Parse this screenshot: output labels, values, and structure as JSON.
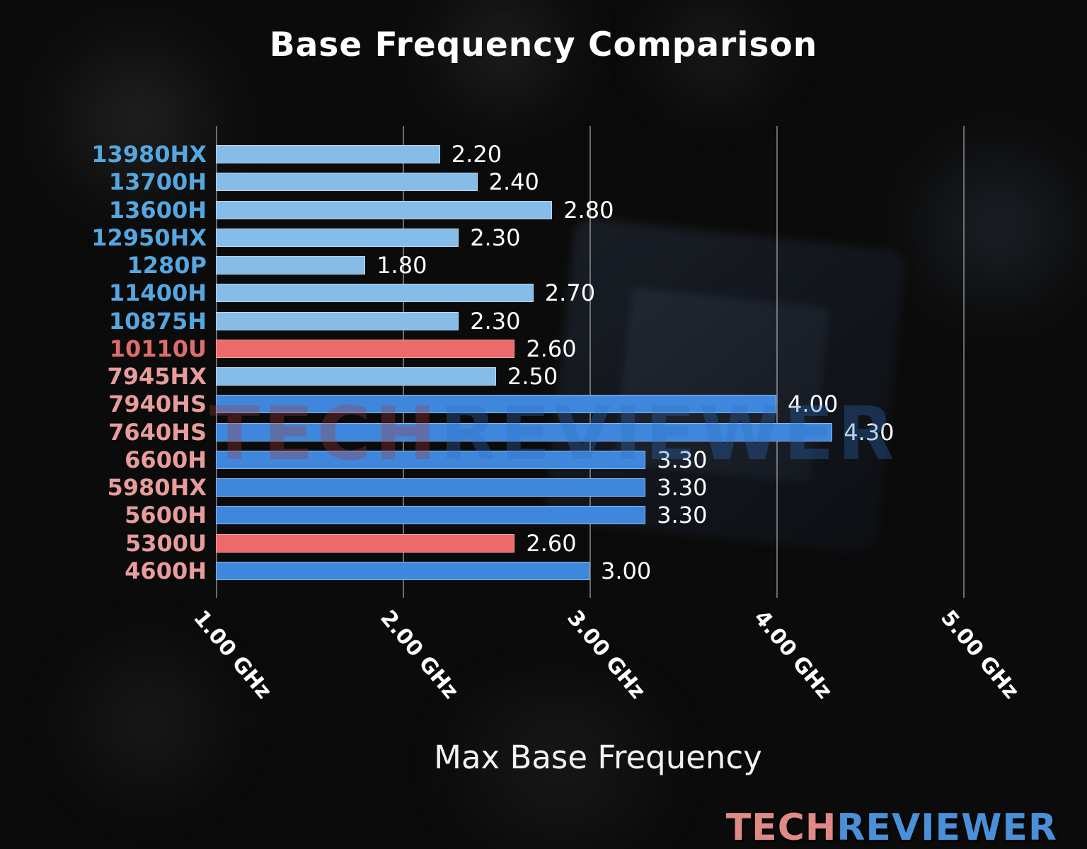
{
  "colors": {
    "background": "#0b0b0b",
    "title_text": "#ffffff",
    "value_text": "#ffffff",
    "tick_text": "#ffffff",
    "gridline": "#bebebe",
    "intel_bar": "#85bde8",
    "amd_bar": "#3e87dd",
    "highlight_bar": "#ec6a6a",
    "intel_label": "#55a7e0",
    "amd_label": "#e89c9c",
    "highlight_label": "#e06d6d",
    "watermark_tech": "#a83a3a",
    "watermark_reviewer": "#2f6fc0",
    "footer_tech": "#e08a85",
    "footer_reviewer": "#4a90d8"
  },
  "watermark": {
    "tech": "TECH",
    "reviewer": "REVIEWER"
  },
  "footer": {
    "tech": "TECH",
    "reviewer": "REVIEWER"
  },
  "chart_data": {
    "type": "bar",
    "orientation": "horizontal",
    "title": "Base Frequency Comparison",
    "xlabel": "Max Base Frequency",
    "unit": "GHz",
    "xlim": [
      1.0,
      5.1
    ],
    "grid": true,
    "x_ticks": [
      "1.00 GHz",
      "2.00 GHz",
      "3.00 GHz",
      "4.00 GHz",
      "5.00 GHz"
    ],
    "x_tick_values": [
      1.0,
      2.0,
      3.0,
      4.0,
      5.0
    ],
    "categories": [
      "13980HX",
      "13700H",
      "13600H",
      "12950HX",
      "1280P",
      "11400H",
      "10875H",
      "10110U",
      "7945HX",
      "7940HS",
      "7640HS",
      "6600H",
      "5980HX",
      "5600H",
      "5300U",
      "4600H"
    ],
    "values": [
      2.2,
      2.4,
      2.8,
      2.3,
      1.8,
      2.7,
      2.3,
      2.6,
      2.5,
      4.0,
      4.3,
      3.3,
      3.3,
      3.3,
      2.6,
      3.0
    ],
    "bars": [
      {
        "model": "13980HX",
        "value": 2.2,
        "display": "2.20",
        "bar": "intel_bar",
        "label": "intel_label"
      },
      {
        "model": "13700H",
        "value": 2.4,
        "display": "2.40",
        "bar": "intel_bar",
        "label": "intel_label"
      },
      {
        "model": "13600H",
        "value": 2.8,
        "display": "2.80",
        "bar": "intel_bar",
        "label": "intel_label"
      },
      {
        "model": "12950HX",
        "value": 2.3,
        "display": "2.30",
        "bar": "intel_bar",
        "label": "intel_label"
      },
      {
        "model": "1280P",
        "value": 1.8,
        "display": "1.80",
        "bar": "intel_bar",
        "label": "intel_label"
      },
      {
        "model": "11400H",
        "value": 2.7,
        "display": "2.70",
        "bar": "intel_bar",
        "label": "intel_label"
      },
      {
        "model": "10875H",
        "value": 2.3,
        "display": "2.30",
        "bar": "intel_bar",
        "label": "intel_label"
      },
      {
        "model": "10110U",
        "value": 2.6,
        "display": "2.60",
        "bar": "highlight_bar",
        "label": "highlight_label"
      },
      {
        "model": "7945HX",
        "value": 2.5,
        "display": "2.50",
        "bar": "intel_bar",
        "label": "amd_label"
      },
      {
        "model": "7940HS",
        "value": 4.0,
        "display": "4.00",
        "bar": "amd_bar",
        "label": "amd_label"
      },
      {
        "model": "7640HS",
        "value": 4.3,
        "display": "4.30",
        "bar": "amd_bar",
        "label": "amd_label"
      },
      {
        "model": "6600H",
        "value": 3.3,
        "display": "3.30",
        "bar": "amd_bar",
        "label": "amd_label"
      },
      {
        "model": "5980HX",
        "value": 3.3,
        "display": "3.30",
        "bar": "amd_bar",
        "label": "amd_label"
      },
      {
        "model": "5600H",
        "value": 3.3,
        "display": "3.30",
        "bar": "amd_bar",
        "label": "amd_label"
      },
      {
        "model": "5300U",
        "value": 2.6,
        "display": "2.60",
        "bar": "highlight_bar",
        "label": "amd_label"
      },
      {
        "model": "4600H",
        "value": 3.0,
        "display": "3.00",
        "bar": "amd_bar",
        "label": "amd_label"
      }
    ]
  }
}
